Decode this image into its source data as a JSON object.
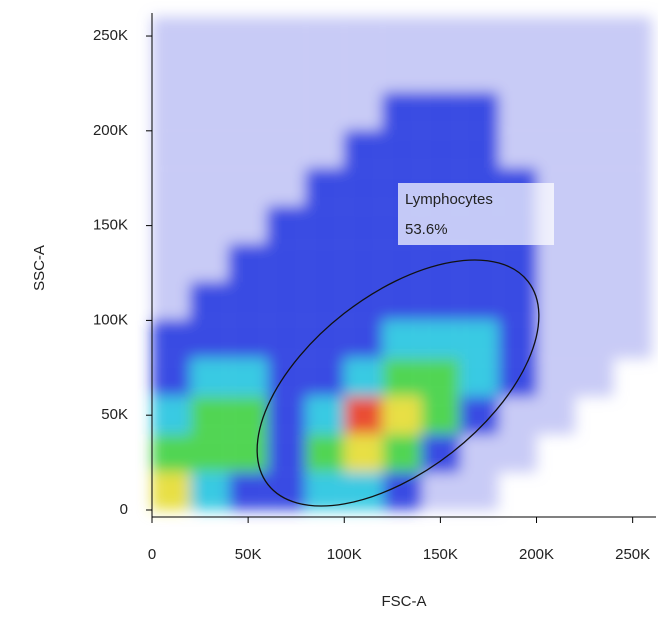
{
  "chart_data": {
    "type": "density",
    "x_label": "FSC-A",
    "y_label": "SSC-A",
    "xlim": [
      0,
      262144
    ],
    "ylim": [
      -3700,
      262144
    ],
    "xticks": [
      0,
      {
        "value": 50000,
        "label": "50K"
      },
      {
        "value": 100000,
        "label": "100K"
      },
      {
        "value": 150000,
        "label": "150K"
      },
      {
        "value": 200000,
        "label": "200K"
      },
      {
        "value": 250000,
        "label": "250K"
      }
    ],
    "yticks": [
      0,
      {
        "value": 50000,
        "label": "50K"
      },
      {
        "value": 100000,
        "label": "100K"
      },
      {
        "value": 150000,
        "label": "150K"
      },
      {
        "value": 200000,
        "label": "200K"
      },
      {
        "value": 250000,
        "label": "250K"
      }
    ],
    "x_bins": [
      0,
      20000,
      40000,
      60000,
      80000,
      100000,
      120000,
      140000,
      160000,
      180000,
      200000,
      220000,
      240000,
      260000
    ],
    "y_bins": [
      0,
      20000,
      40000,
      60000,
      80000,
      100000,
      120000,
      140000,
      160000,
      180000,
      200000,
      220000,
      240000,
      260000
    ],
    "density": [
      [
        5,
        3,
        2,
        2,
        3,
        3,
        2,
        1,
        1,
        0,
        0,
        0,
        0
      ],
      [
        4,
        4,
        4,
        2,
        4,
        5,
        4,
        2,
        1,
        1,
        0,
        0,
        0
      ],
      [
        3,
        4,
        4,
        2,
        3,
        6,
        5,
        4,
        2,
        1,
        1,
        0,
        0
      ],
      [
        2,
        3,
        3,
        2,
        2,
        3,
        4,
        4,
        3,
        2,
        1,
        1,
        0
      ],
      [
        2,
        2,
        2,
        2,
        2,
        2,
        3,
        3,
        3,
        2,
        1,
        1,
        1
      ],
      [
        1,
        2,
        2,
        2,
        2,
        2,
        2,
        2,
        2,
        2,
        1,
        1,
        1
      ],
      [
        1,
        1,
        2,
        2,
        2,
        2,
        2,
        2,
        2,
        2,
        1,
        1,
        1
      ],
      [
        1,
        1,
        1,
        2,
        2,
        2,
        2,
        2,
        2,
        2,
        1,
        1,
        1
      ],
      [
        1,
        1,
        1,
        1,
        2,
        2,
        2,
        2,
        2,
        2,
        1,
        1,
        1
      ],
      [
        1,
        1,
        1,
        1,
        1,
        2,
        2,
        2,
        2,
        1,
        1,
        1,
        1
      ],
      [
        1,
        1,
        1,
        1,
        1,
        1,
        2,
        2,
        2,
        1,
        1,
        1,
        1
      ],
      [
        1,
        1,
        1,
        1,
        1,
        1,
        1,
        1,
        1,
        1,
        1,
        1,
        1
      ],
      [
        1,
        1,
        1,
        1,
        1,
        1,
        1,
        1,
        1,
        1,
        1,
        1,
        1
      ]
    ],
    "colors": [
      "#ffffff",
      "#9aa0ee",
      "#2336e0",
      "#22c4e0",
      "#3ed040",
      "#e6dc30",
      "#e83a20"
    ],
    "gate": {
      "name": "Lymphocytes",
      "value": 53.6,
      "value_label": "53.6%"
    }
  }
}
